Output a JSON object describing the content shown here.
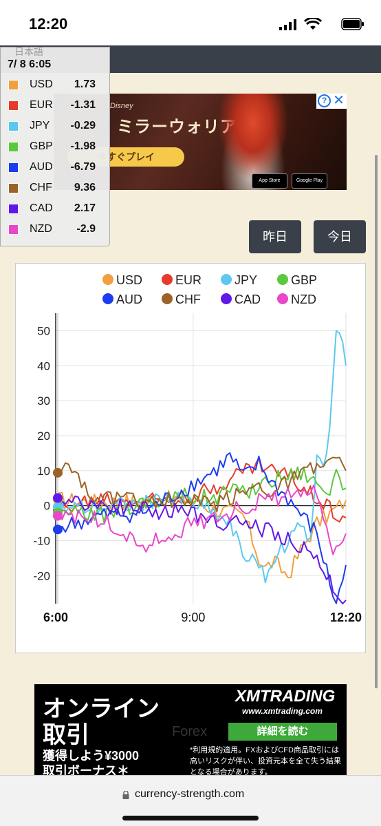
{
  "status": {
    "time": "12:20"
  },
  "tooltip": {
    "lang": "日本語",
    "title": "7/ 8 6:05",
    "rows": [
      {
        "name": "USD",
        "value": "1.73",
        "color": "#f0a040"
      },
      {
        "name": "EUR",
        "value": "-1.31",
        "color": "#e83a2c"
      },
      {
        "name": "JPY",
        "value": "-0.29",
        "color": "#5cc8f0"
      },
      {
        "name": "GBP",
        "value": "-1.98",
        "color": "#5cc83c"
      },
      {
        "name": "AUD",
        "value": "-6.79",
        "color": "#1c3cf0"
      },
      {
        "name": "CHF",
        "value": "9.36",
        "color": "#9a6428"
      },
      {
        "name": "CAD",
        "value": "2.17",
        "color": "#6018e8"
      },
      {
        "name": "NZD",
        "value": "-2.9",
        "color": "#e848c8"
      }
    ]
  },
  "buttons": {
    "yesterday": "昨日",
    "today": "今日"
  },
  "ad1": {
    "brand": "Disney",
    "title": "ミラーウォリアーズ",
    "play": "今すぐプレイ",
    "appstore": "App Store",
    "googleplay": "Google Play"
  },
  "ad2": {
    "line1": "オンライン",
    "line2": "取引",
    "sub1": "獲得しよう¥3000",
    "sub2": "取引ボーナス＊",
    "forex": "Forex",
    "logo": "XMTRADING",
    "url": "www.xmtrading.com",
    "cta": "詳細を読む",
    "disclaimer": "*利用規約適用。FXおよびCFD商品取引には高いリスクが伴い、投資元本を全て失う結果となる場合があります。"
  },
  "urlbar": {
    "url": "currency-strength.com"
  },
  "chart_data": {
    "type": "line",
    "y_ticks": [
      "50",
      "40",
      "30",
      "20",
      "10",
      "0",
      "-10",
      "-20"
    ],
    "x_ticks": [
      "6:00",
      "9:00",
      "12:20"
    ],
    "ylim": [
      -28,
      55
    ],
    "grid": true,
    "legend_position": "top",
    "series": [
      {
        "name": "USD",
        "color": "#f0a040",
        "points": [
          [
            0,
            1.7
          ],
          [
            0.15,
            1
          ],
          [
            0.3,
            1.5
          ],
          [
            0.45,
            2
          ],
          [
            0.55,
            -1
          ],
          [
            0.6,
            -2
          ],
          [
            0.65,
            -3
          ],
          [
            0.7,
            -15
          ],
          [
            0.72,
            -18
          ],
          [
            0.75,
            -16
          ],
          [
            0.8,
            -20
          ],
          [
            0.85,
            -12
          ],
          [
            0.9,
            -5
          ],
          [
            0.95,
            -2
          ],
          [
            1,
            1.5
          ]
        ]
      },
      {
        "name": "EUR",
        "color": "#e83a2c",
        "points": [
          [
            0,
            -1.3
          ],
          [
            0.15,
            2
          ],
          [
            0.3,
            1.5
          ],
          [
            0.45,
            3
          ],
          [
            0.55,
            5
          ],
          [
            0.6,
            8
          ],
          [
            0.65,
            10
          ],
          [
            0.7,
            12
          ],
          [
            0.75,
            10
          ],
          [
            0.8,
            9
          ],
          [
            0.85,
            5
          ],
          [
            0.9,
            3
          ],
          [
            0.95,
            -1
          ],
          [
            1,
            -3.5
          ]
        ]
      },
      {
        "name": "JPY",
        "color": "#5cc8f0",
        "points": [
          [
            0,
            -0.3
          ],
          [
            0.15,
            0
          ],
          [
            0.3,
            1
          ],
          [
            0.45,
            2
          ],
          [
            0.55,
            -2
          ],
          [
            0.6,
            -5
          ],
          [
            0.65,
            -14
          ],
          [
            0.7,
            -18
          ],
          [
            0.72,
            -20
          ],
          [
            0.75,
            -16
          ],
          [
            0.8,
            -10
          ],
          [
            0.85,
            -6
          ],
          [
            0.88,
            -10
          ],
          [
            0.9,
            16
          ],
          [
            0.93,
            12
          ],
          [
            0.95,
            30
          ],
          [
            0.97,
            54
          ],
          [
            1,
            40
          ]
        ]
      },
      {
        "name": "GBP",
        "color": "#5cc83c",
        "points": [
          [
            0,
            -2
          ],
          [
            0.15,
            -3
          ],
          [
            0.3,
            1
          ],
          [
            0.45,
            3
          ],
          [
            0.55,
            2
          ],
          [
            0.6,
            5
          ],
          [
            0.65,
            3
          ],
          [
            0.7,
            6
          ],
          [
            0.75,
            8
          ],
          [
            0.8,
            9
          ],
          [
            0.85,
            10
          ],
          [
            0.9,
            7
          ],
          [
            0.95,
            4
          ],
          [
            0.97,
            9
          ],
          [
            1,
            5
          ]
        ]
      },
      {
        "name": "AUD",
        "color": "#1c3cf0",
        "points": [
          [
            0,
            -6.8
          ],
          [
            0.15,
            -3
          ],
          [
            0.3,
            -2
          ],
          [
            0.45,
            5
          ],
          [
            0.55,
            10
          ],
          [
            0.6,
            14
          ],
          [
            0.65,
            8
          ],
          [
            0.7,
            12
          ],
          [
            0.75,
            6
          ],
          [
            0.8,
            2
          ],
          [
            0.85,
            -3
          ],
          [
            0.9,
            -8
          ],
          [
            0.95,
            -24
          ],
          [
            0.97,
            -28
          ],
          [
            1,
            -17
          ]
        ]
      },
      {
        "name": "CHF",
        "color": "#9a6428",
        "points": [
          [
            0,
            9.4
          ],
          [
            0.05,
            12
          ],
          [
            0.1,
            5
          ],
          [
            0.15,
            2
          ],
          [
            0.3,
            1
          ],
          [
            0.45,
            1
          ],
          [
            0.55,
            0
          ],
          [
            0.6,
            2
          ],
          [
            0.65,
            4
          ],
          [
            0.7,
            6
          ],
          [
            0.75,
            4
          ],
          [
            0.8,
            7
          ],
          [
            0.85,
            9
          ],
          [
            0.9,
            11
          ],
          [
            0.95,
            13
          ],
          [
            1,
            10
          ]
        ]
      },
      {
        "name": "CAD",
        "color": "#6018e8",
        "points": [
          [
            0,
            2.2
          ],
          [
            0.15,
            0
          ],
          [
            0.3,
            -1
          ],
          [
            0.45,
            -2
          ],
          [
            0.55,
            -4
          ],
          [
            0.6,
            -5
          ],
          [
            0.65,
            -5
          ],
          [
            0.7,
            -6
          ],
          [
            0.75,
            -8
          ],
          [
            0.8,
            -10
          ],
          [
            0.85,
            -12
          ],
          [
            0.9,
            -16
          ],
          [
            0.95,
            -22
          ],
          [
            0.97,
            -25
          ],
          [
            1,
            -27
          ]
        ]
      },
      {
        "name": "NZD",
        "color": "#e848c8",
        "points": [
          [
            0,
            -2.9
          ],
          [
            0.1,
            -3
          ],
          [
            0.2,
            -6
          ],
          [
            0.3,
            -12
          ],
          [
            0.35,
            -10
          ],
          [
            0.45,
            -6
          ],
          [
            0.55,
            -3
          ],
          [
            0.6,
            -2
          ],
          [
            0.65,
            0
          ],
          [
            0.7,
            1
          ],
          [
            0.75,
            2
          ],
          [
            0.8,
            3
          ],
          [
            0.85,
            2
          ],
          [
            0.9,
            5
          ],
          [
            0.95,
            -15
          ],
          [
            1,
            -8
          ]
        ]
      }
    ]
  }
}
